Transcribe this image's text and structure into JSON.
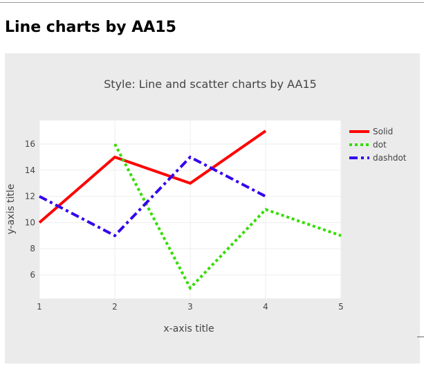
{
  "page": {
    "heading": "Line charts by AA15"
  },
  "chart_data": {
    "type": "line",
    "title": "Style: Line and scatter charts by AA15",
    "xlabel": "x-axis title",
    "ylabel": "y-axis title",
    "xlim": [
      1,
      5
    ],
    "ylim": [
      4.2,
      17.8
    ],
    "x_ticks": [
      1,
      2,
      3,
      4,
      5
    ],
    "y_ticks": [
      6,
      8,
      10,
      12,
      14,
      16
    ],
    "grid": true,
    "legend_position": "top-right",
    "series": [
      {
        "name": "Solid",
        "x": [
          1,
          2,
          3,
          4
        ],
        "y": [
          10,
          15,
          13,
          17
        ],
        "color": "#ff0000",
        "dash": "solid"
      },
      {
        "name": "dot",
        "x": [
          2,
          3,
          4,
          5
        ],
        "y": [
          16,
          5,
          11,
          9
        ],
        "color": "#33dd00",
        "dash": "dot"
      },
      {
        "name": "dashdot",
        "x": [
          1,
          2,
          3,
          4
        ],
        "y": [
          12,
          9,
          15,
          12
        ],
        "color": "#3300ee",
        "dash": "dashdot"
      }
    ]
  }
}
